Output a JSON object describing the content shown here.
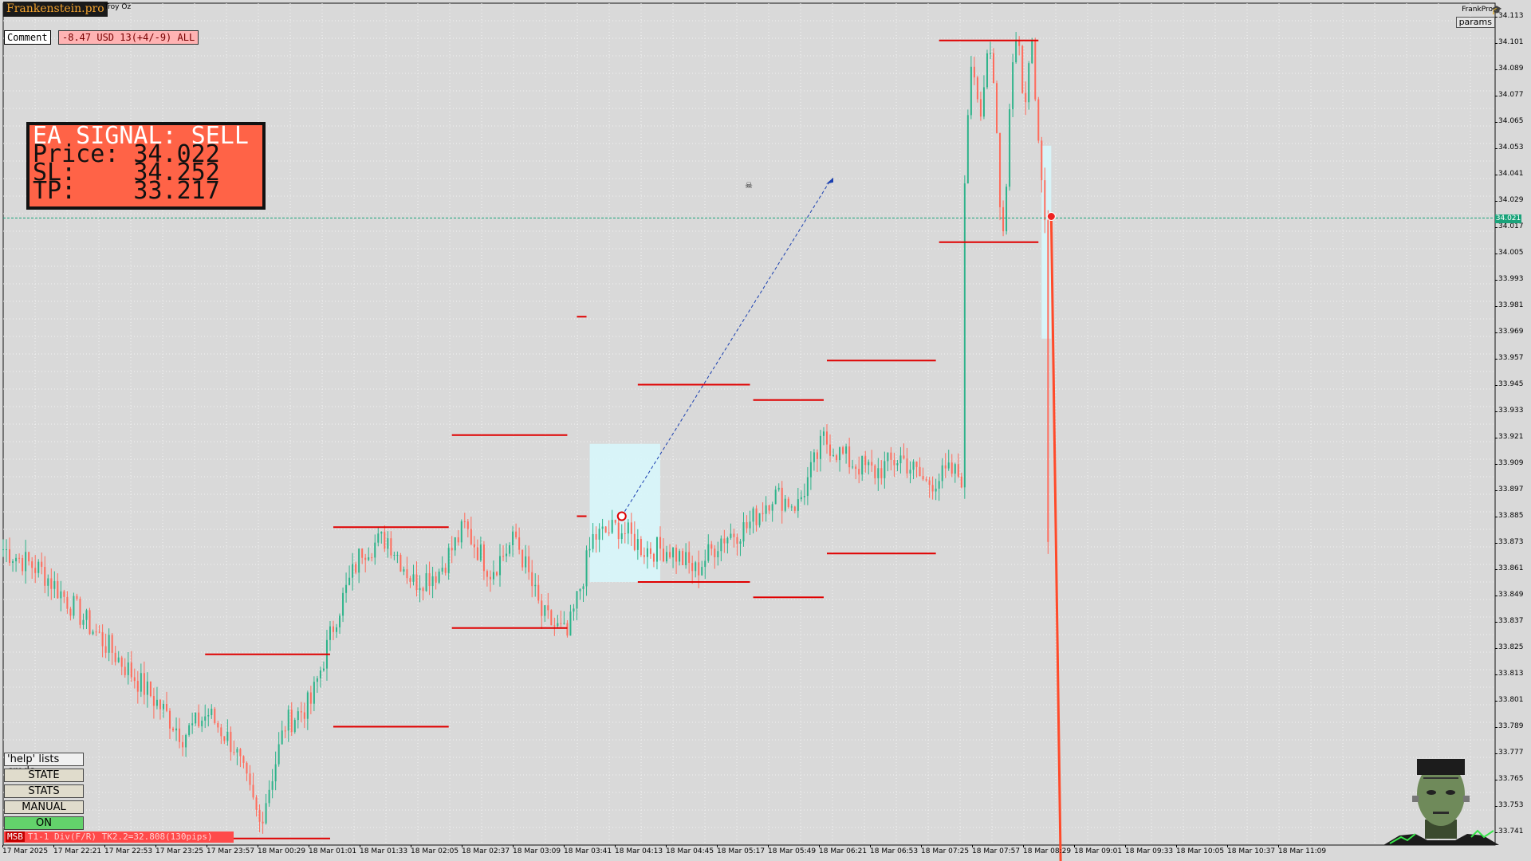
{
  "brand": {
    "name": "Frankenstein.pro"
  },
  "symbol": {
    "label": "Troy Oz"
  },
  "comment": {
    "label": "Comment",
    "pnl": "-8.47 USD 13(+4/-9) ALL"
  },
  "signal": {
    "heading": "EA SIGNAL: SELL",
    "price_line": "Price: 34.022",
    "sl_line": "SL:    34.252",
    "tp_line": "TP:    33.217",
    "direction": "SELL",
    "price": 34.022,
    "stop_loss": 34.252,
    "take_profit": 33.217,
    "panel_color": "#ff6347"
  },
  "account": {
    "name": "FrankPro",
    "icon": "graduation-cap-icon"
  },
  "params_label": "params",
  "side_controls": {
    "help_label": "'help' lists cmds",
    "state_label": "STATE",
    "stats_label": "STATS",
    "manual_label": "MANUAL",
    "on_label": "ON",
    "on_color": "#63d26b"
  },
  "status_strip": {
    "tag": "MSB",
    "text": "T1-1  Div(F/R) TK2.2=32.808(130pips)"
  },
  "price_axis": {
    "labels": [
      "34.113",
      "34.101",
      "34.089",
      "34.077",
      "34.065",
      "34.053",
      "34.041",
      "34.029",
      "34.017",
      "34.005",
      "33.993",
      "33.981",
      "33.969",
      "33.957",
      "33.945",
      "33.933",
      "33.921",
      "33.909",
      "33.897",
      "33.885",
      "33.873",
      "33.861",
      "33.849",
      "33.837",
      "33.825",
      "33.813",
      "33.801",
      "33.789",
      "33.777",
      "33.765",
      "33.753",
      "33.741"
    ],
    "current_price": "34.021"
  },
  "time_axis": {
    "labels": [
      "17 Mar 2025",
      "17 Mar 22:21",
      "17 Mar 22:53",
      "17 Mar 23:25",
      "17 Mar 23:57",
      "18 Mar 00:29",
      "18 Mar 01:01",
      "18 Mar 01:33",
      "18 Mar 02:05",
      "18 Mar 02:37",
      "18 Mar 03:09",
      "18 Mar 03:41",
      "18 Mar 04:13",
      "18 Mar 04:45",
      "18 Mar 05:17",
      "18 Mar 05:49",
      "18 Mar 06:21",
      "18 Mar 06:53",
      "18 Mar 07:25",
      "18 Mar 07:57",
      "18 Mar 08:29",
      "18 Mar 09:01",
      "18 Mar 09:33",
      "18 Mar 10:05",
      "18 Mar 10:37",
      "18 Mar 11:09"
    ]
  },
  "chart_data": {
    "type": "line",
    "title": "",
    "xlabel": "",
    "ylabel": "",
    "ylim": [
      33.735,
      34.119
    ],
    "grid": true,
    "colors": {
      "up": "#2db38a",
      "down": "#ff6b5b",
      "level": "#e00000",
      "ask": "#1aa37a",
      "sell_line": "#ff4a2a"
    },
    "x_index": [
      0,
      12,
      24,
      36,
      48,
      56,
      64,
      72,
      80,
      88,
      96,
      104,
      112,
      120,
      128,
      136,
      144,
      152,
      160,
      168,
      176,
      184,
      192,
      200,
      208,
      216,
      224,
      232,
      240,
      248,
      256,
      264,
      272,
      280,
      288,
      296,
      304,
      312,
      320,
      328,
      336,
      344,
      352,
      360,
      368,
      376,
      384,
      392,
      400,
      408,
      416,
      424,
      432,
      440,
      448,
      456,
      462
    ],
    "close": [
      33.87,
      33.86,
      33.84,
      33.82,
      33.8,
      33.785,
      33.795,
      33.78,
      33.745,
      33.79,
      33.8,
      33.84,
      33.87,
      33.875,
      33.855,
      33.86,
      33.88,
      33.86,
      33.875,
      33.84,
      33.83,
      33.875,
      33.88,
      33.87,
      33.87,
      33.86,
      33.875,
      33.88,
      33.895,
      33.89,
      33.92,
      33.91,
      33.905,
      33.912,
      33.9,
      33.905,
      33.9,
      33.905,
      33.885,
      33.87,
      33.876,
      33.885,
      33.91,
      33.905,
      33.89,
      33.88,
      33.87,
      33.875,
      33.93,
      33.945,
      33.94,
      33.96,
      33.945,
      33.915,
      33.87,
      33.88,
      33.965
    ],
    "horizontal_levels": [
      {
        "from": 63,
        "to": 102,
        "price": 33.822
      },
      {
        "from": 63,
        "to": 102,
        "price": 33.738
      },
      {
        "from": 103,
        "to": 139,
        "price": 33.88
      },
      {
        "from": 103,
        "to": 139,
        "price": 33.789
      },
      {
        "from": 140,
        "to": 176,
        "price": 33.922
      },
      {
        "from": 140,
        "to": 176,
        "price": 33.834
      },
      {
        "from": 179,
        "to": 182,
        "price": 33.885
      },
      {
        "from": 179,
        "to": 182,
        "price": 33.976
      },
      {
        "from": 198,
        "to": 233,
        "price": 33.945
      },
      {
        "from": 198,
        "to": 233,
        "price": 33.855
      },
      {
        "from": 234,
        "to": 256,
        "price": 33.938
      },
      {
        "from": 234,
        "to": 256,
        "price": 33.848
      },
      {
        "from": 257,
        "to": 291,
        "price": 33.956
      },
      {
        "from": 257,
        "to": 291,
        "price": 33.868
      },
      {
        "from": 292,
        "to": 323,
        "price": 34.01
      },
      {
        "from": 292,
        "to": 323,
        "price": 34.102
      }
    ],
    "ask_price": 34.021,
    "trade": {
      "entry_index": 193,
      "entry_price": 33.885,
      "exit_index": 258,
      "exit_price": 34.038
    },
    "sell_signal": {
      "index": 327,
      "from_price": 34.021,
      "to_index": 330,
      "to_price": 33.72
    }
  }
}
